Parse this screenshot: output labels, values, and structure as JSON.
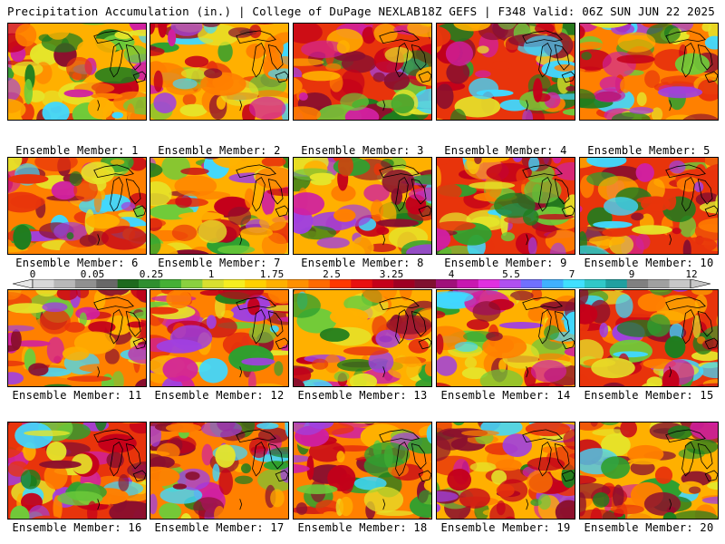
{
  "header": {
    "left_title": "Precipitation Accumulation (in.) | College of DuPage NEXLAB",
    "right_title": "18Z GEFS | F348 Valid: 06Z SUN JUN 22 2025"
  },
  "map": {
    "region": "Central United States / Great Lakes",
    "fill_colors": [
      "#1e7d1e",
      "#2fa02f",
      "#6ecb3a",
      "#e5e52a",
      "#ffb000",
      "#ff8000",
      "#e8340b",
      "#c4001a",
      "#8a0f2e",
      "#d020a0",
      "#a040e0",
      "#40d8ff"
    ]
  },
  "colorbar": {
    "tick_labels": [
      "0",
      "0.05",
      "0.25",
      "1",
      "1.75",
      "2.5",
      "3.25",
      "4",
      "5.5",
      "7",
      "9",
      "12"
    ],
    "colors": [
      "#d8d8d8",
      "#b8b8b8",
      "#909090",
      "#686868",
      "#1e6a1e",
      "#2f8f2f",
      "#45b035",
      "#8ad040",
      "#d8e030",
      "#f5ee20",
      "#ffd000",
      "#ffb000",
      "#ff9000",
      "#ff6a00",
      "#ff3800",
      "#e81010",
      "#c4001a",
      "#9e0022",
      "#801030",
      "#a0107a",
      "#c818b0",
      "#e030e0",
      "#b050f0",
      "#7070ff",
      "#40b0ff",
      "#40e0ff",
      "#30c8c8",
      "#20a0a0",
      "#808080",
      "#a0a0a0",
      "#c8c8c8"
    ]
  },
  "panels": [
    {
      "label": "Ensemble Member: 1"
    },
    {
      "label": "Ensemble Member: 2"
    },
    {
      "label": "Ensemble Member: 3"
    },
    {
      "label": "Ensemble Member: 4"
    },
    {
      "label": "Ensemble Member: 5"
    },
    {
      "label": "Ensemble Member: 6"
    },
    {
      "label": "Ensemble Member: 7"
    },
    {
      "label": "Ensemble Member: 8"
    },
    {
      "label": "Ensemble Member: 9"
    },
    {
      "label": "Ensemble Member: 10"
    },
    {
      "label": "Ensemble Member: 11"
    },
    {
      "label": "Ensemble Member: 12"
    },
    {
      "label": "Ensemble Member: 13"
    },
    {
      "label": "Ensemble Member: 14"
    },
    {
      "label": "Ensemble Member: 15"
    },
    {
      "label": "Ensemble Member: 16"
    },
    {
      "label": "Ensemble Member: 17"
    },
    {
      "label": "Ensemble Member: 18"
    },
    {
      "label": "Ensemble Member: 19"
    },
    {
      "label": "Ensemble Member: 20"
    }
  ]
}
